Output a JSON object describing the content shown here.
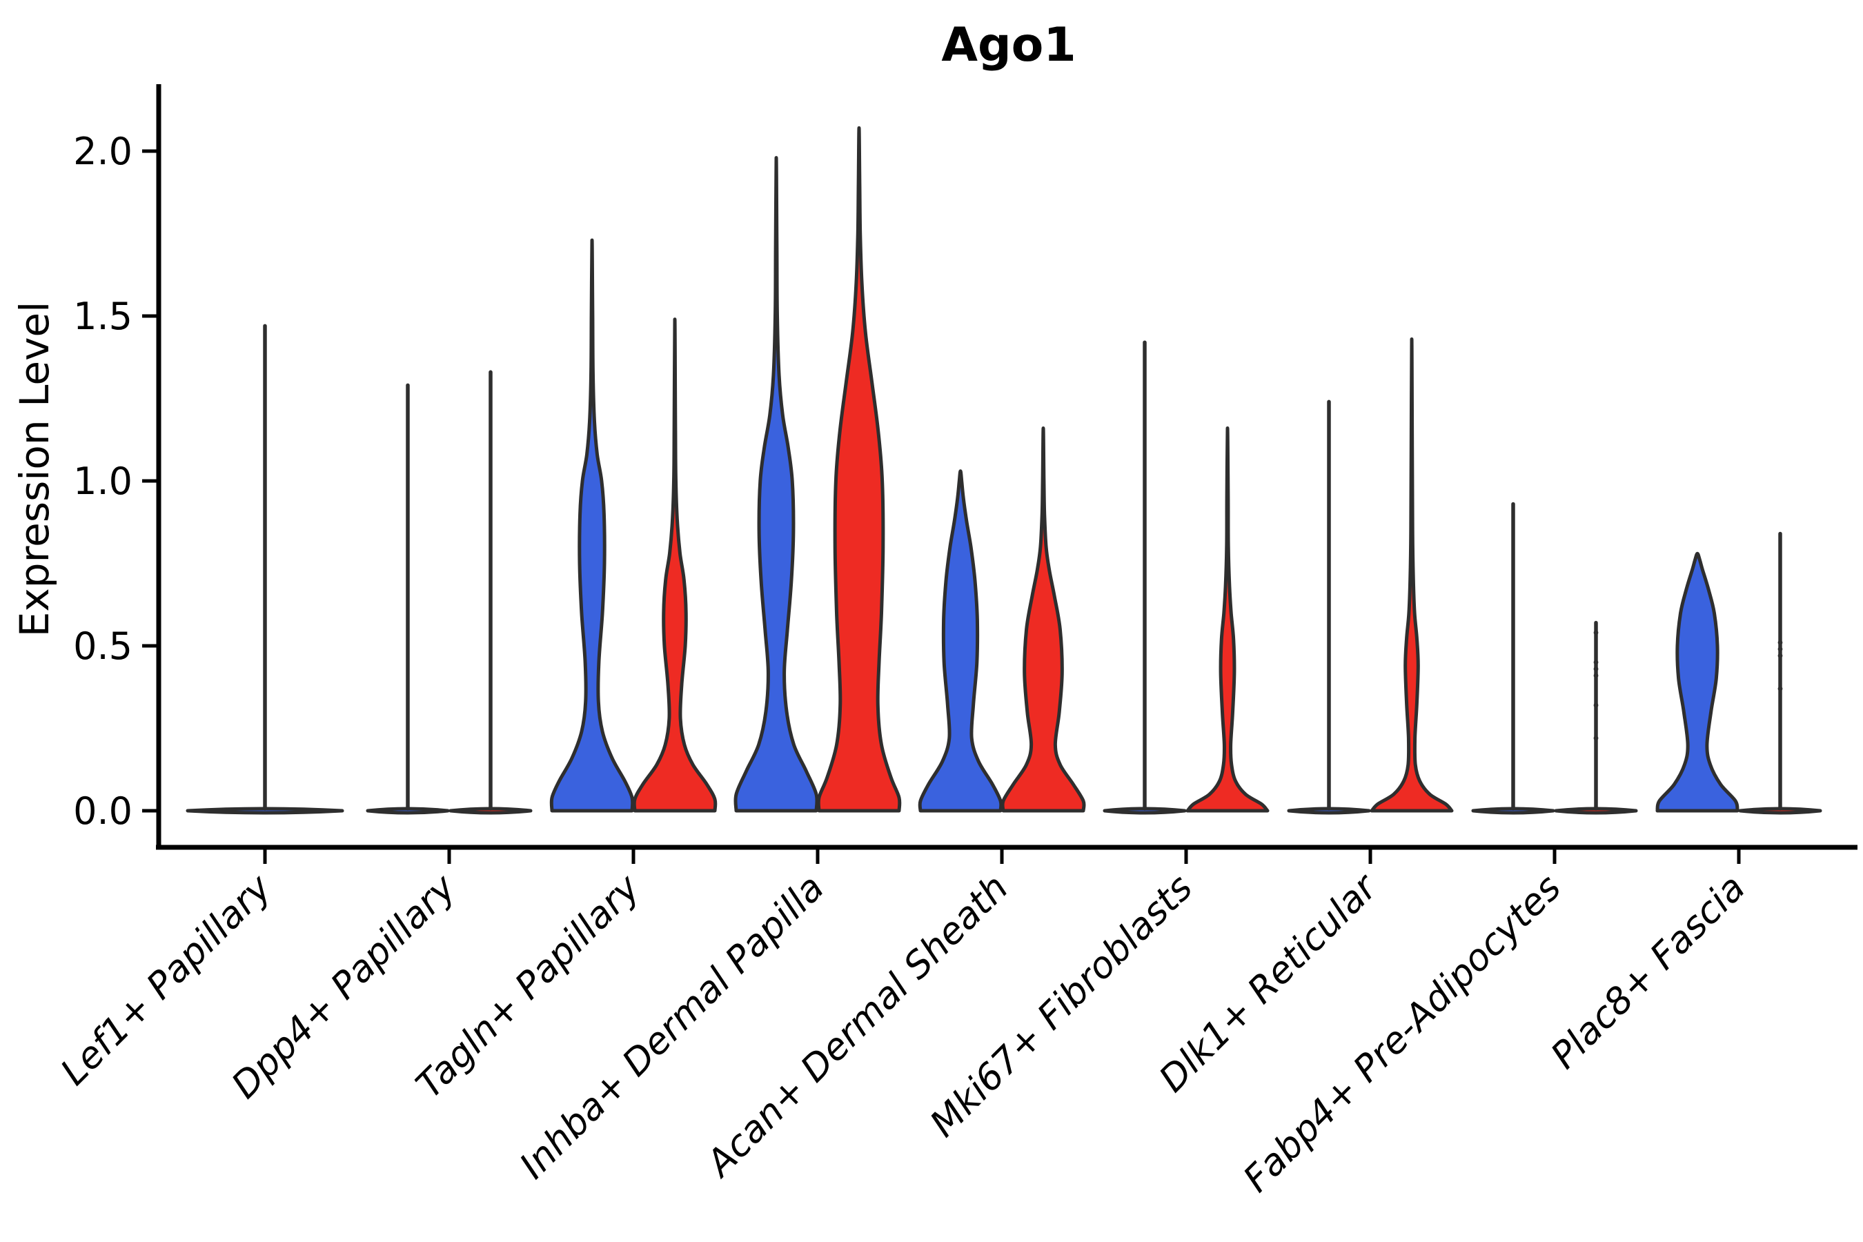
{
  "title": "Ago1",
  "ylabel": "Expression Level",
  "chart_data": {
    "type": "violin",
    "title": "Ago1",
    "xlabel": "",
    "ylabel": "Expression Level",
    "ylim": [
      0.0,
      2.15
    ],
    "yticks": [
      0.0,
      0.5,
      1.0,
      1.5,
      2.0
    ],
    "ytick_labels": [
      "0.0",
      "0.5",
      "1.0",
      "1.5",
      "2.0"
    ],
    "grid": false,
    "legend": "none",
    "groups": [
      "group-blue",
      "group-red"
    ],
    "colors": {
      "blue": "#3A62DE",
      "red": "#EE2B23",
      "outline": "#2E2E2E",
      "axis": "#000000"
    },
    "categories": [
      {
        "label": "Lef1+ Papillary",
        "violins": [
          {
            "color": "blue",
            "span": "full",
            "shape": "flat",
            "max": 1.47,
            "dots": []
          }
        ]
      },
      {
        "label": "Dpp4+ Papillary",
        "violins": [
          {
            "color": "blue",
            "span": "half",
            "shape": "flat",
            "max": 1.29,
            "dots": []
          },
          {
            "color": "red",
            "span": "half",
            "shape": "flat",
            "max": 1.33,
            "dots": []
          }
        ]
      },
      {
        "label": "Tagln+ Papillary",
        "violins": [
          {
            "color": "blue",
            "span": "half",
            "shape": "density",
            "max": 1.73,
            "dots": [],
            "profile": [
              [
                0,
                1
              ],
              [
                0.04,
                1
              ],
              [
                0.09,
                0.82
              ],
              [
                0.16,
                0.5
              ],
              [
                0.24,
                0.26
              ],
              [
                0.33,
                0.16
              ],
              [
                0.45,
                0.17
              ],
              [
                0.6,
                0.26
              ],
              [
                0.75,
                0.31
              ],
              [
                0.9,
                0.3
              ],
              [
                1.0,
                0.24
              ],
              [
                1.08,
                0.13
              ],
              [
                1.18,
                0.06
              ],
              [
                1.32,
                0.025
              ],
              [
                1.5,
                0.015
              ]
            ]
          },
          {
            "color": "red",
            "span": "half",
            "shape": "density",
            "max": 1.49,
            "dots": [],
            "profile": [
              [
                0,
                1
              ],
              [
                0.035,
                1
              ],
              [
                0.08,
                0.8
              ],
              [
                0.14,
                0.45
              ],
              [
                0.2,
                0.24
              ],
              [
                0.28,
                0.14
              ],
              [
                0.38,
                0.17
              ],
              [
                0.5,
                0.26
              ],
              [
                0.6,
                0.28
              ],
              [
                0.7,
                0.23
              ],
              [
                0.78,
                0.13
              ],
              [
                0.88,
                0.06
              ],
              [
                1.0,
                0.025
              ],
              [
                1.15,
                0.015
              ]
            ]
          }
        ]
      },
      {
        "label": "Inhba+ Dermal Papilla",
        "violins": [
          {
            "color": "blue",
            "span": "half",
            "shape": "density",
            "max": 1.98,
            "dots": [],
            "profile": [
              [
                0,
                1
              ],
              [
                0.05,
                1
              ],
              [
                0.12,
                0.75
              ],
              [
                0.2,
                0.44
              ],
              [
                0.3,
                0.26
              ],
              [
                0.42,
                0.2
              ],
              [
                0.55,
                0.28
              ],
              [
                0.7,
                0.38
              ],
              [
                0.85,
                0.43
              ],
              [
                1.0,
                0.4
              ],
              [
                1.1,
                0.3
              ],
              [
                1.2,
                0.16
              ],
              [
                1.32,
                0.07
              ],
              [
                1.5,
                0.025
              ],
              [
                1.7,
                0.015
              ]
            ]
          },
          {
            "color": "red",
            "span": "half",
            "shape": "density",
            "max": 2.07,
            "dots": [],
            "profile": [
              [
                0,
                1
              ],
              [
                0.04,
                1
              ],
              [
                0.1,
                0.8
              ],
              [
                0.2,
                0.56
              ],
              [
                0.32,
                0.47
              ],
              [
                0.45,
                0.5
              ],
              [
                0.6,
                0.56
              ],
              [
                0.8,
                0.6
              ],
              [
                1.0,
                0.58
              ],
              [
                1.15,
                0.48
              ],
              [
                1.3,
                0.32
              ],
              [
                1.45,
                0.16
              ],
              [
                1.6,
                0.07
              ],
              [
                1.75,
                0.03
              ],
              [
                1.9,
                0.015
              ]
            ]
          }
        ]
      },
      {
        "label": "Acan+ Dermal Sheath",
        "violins": [
          {
            "color": "blue",
            "span": "half",
            "shape": "density",
            "max": 1.03,
            "dots": [],
            "profile": [
              [
                0,
                1
              ],
              [
                0.03,
                1
              ],
              [
                0.08,
                0.8
              ],
              [
                0.15,
                0.45
              ],
              [
                0.22,
                0.28
              ],
              [
                0.32,
                0.32
              ],
              [
                0.45,
                0.41
              ],
              [
                0.58,
                0.42
              ],
              [
                0.7,
                0.36
              ],
              [
                0.8,
                0.26
              ],
              [
                0.88,
                0.15
              ],
              [
                0.95,
                0.07
              ],
              [
                1.0,
                0.03
              ]
            ]
          },
          {
            "color": "red",
            "span": "half",
            "shape": "density",
            "max": 1.16,
            "dots": [],
            "profile": [
              [
                0,
                1
              ],
              [
                0.03,
                1
              ],
              [
                0.08,
                0.75
              ],
              [
                0.14,
                0.42
              ],
              [
                0.2,
                0.3
              ],
              [
                0.3,
                0.4
              ],
              [
                0.42,
                0.47
              ],
              [
                0.55,
                0.42
              ],
              [
                0.65,
                0.28
              ],
              [
                0.73,
                0.15
              ],
              [
                0.8,
                0.07
              ],
              [
                0.9,
                0.03
              ],
              [
                1.0,
                0.015
              ]
            ]
          }
        ]
      },
      {
        "label": "Mki67+ Fibroblasts",
        "violins": [
          {
            "color": "blue",
            "span": "half",
            "shape": "flat",
            "max": 1.42,
            "dots": []
          },
          {
            "color": "red",
            "span": "half",
            "shape": "density",
            "max": 1.16,
            "dots": [],
            "profile": [
              [
                0,
                1
              ],
              [
                0.02,
                0.85
              ],
              [
                0.05,
                0.45
              ],
              [
                0.09,
                0.2
              ],
              [
                0.14,
                0.1
              ],
              [
                0.2,
                0.08
              ],
              [
                0.3,
                0.13
              ],
              [
                0.42,
                0.17
              ],
              [
                0.52,
                0.15
              ],
              [
                0.6,
                0.09
              ],
              [
                0.68,
                0.05
              ],
              [
                0.8,
                0.02
              ],
              [
                0.95,
                0.015
              ]
            ]
          }
        ]
      },
      {
        "label": "Dlk1+ Reticular",
        "violins": [
          {
            "color": "blue",
            "span": "half",
            "shape": "flat",
            "max": 1.24,
            "dots": []
          },
          {
            "color": "red",
            "span": "half",
            "shape": "density",
            "max": 1.43,
            "dots": [],
            "profile": [
              [
                0,
                1
              ],
              [
                0.02,
                0.85
              ],
              [
                0.05,
                0.45
              ],
              [
                0.09,
                0.2
              ],
              [
                0.14,
                0.09
              ],
              [
                0.22,
                0.08
              ],
              [
                0.33,
                0.13
              ],
              [
                0.44,
                0.16
              ],
              [
                0.52,
                0.13
              ],
              [
                0.6,
                0.07
              ],
              [
                0.7,
                0.04
              ],
              [
                0.85,
                0.02
              ],
              [
                1.1,
                0.012
              ]
            ]
          }
        ]
      },
      {
        "label": "Fabp4+ Pre-Adipocytes",
        "violins": [
          {
            "color": "blue",
            "span": "half",
            "shape": "flat",
            "max": 0.93,
            "dots": []
          },
          {
            "color": "red",
            "span": "half",
            "shape": "flat",
            "max": 0.57,
            "dots": [
              0.54,
              0.45,
              0.43,
              0.41,
              0.32,
              0.22
            ]
          }
        ]
      },
      {
        "label": "Plac8+ Fascia",
        "violins": [
          {
            "color": "blue",
            "span": "half",
            "shape": "density",
            "max": 0.78,
            "dots": [],
            "profile": [
              [
                0,
                1
              ],
              [
                0.03,
                0.95
              ],
              [
                0.08,
                0.58
              ],
              [
                0.14,
                0.32
              ],
              [
                0.2,
                0.24
              ],
              [
                0.3,
                0.34
              ],
              [
                0.4,
                0.47
              ],
              [
                0.5,
                0.5
              ],
              [
                0.6,
                0.42
              ],
              [
                0.67,
                0.28
              ],
              [
                0.73,
                0.13
              ],
              [
                0.76,
                0.06
              ]
            ]
          },
          {
            "color": "red",
            "span": "half",
            "shape": "flat",
            "max": 0.84,
            "dots": [
              0.51,
              0.49,
              0.47,
              0.37
            ]
          }
        ]
      }
    ]
  }
}
